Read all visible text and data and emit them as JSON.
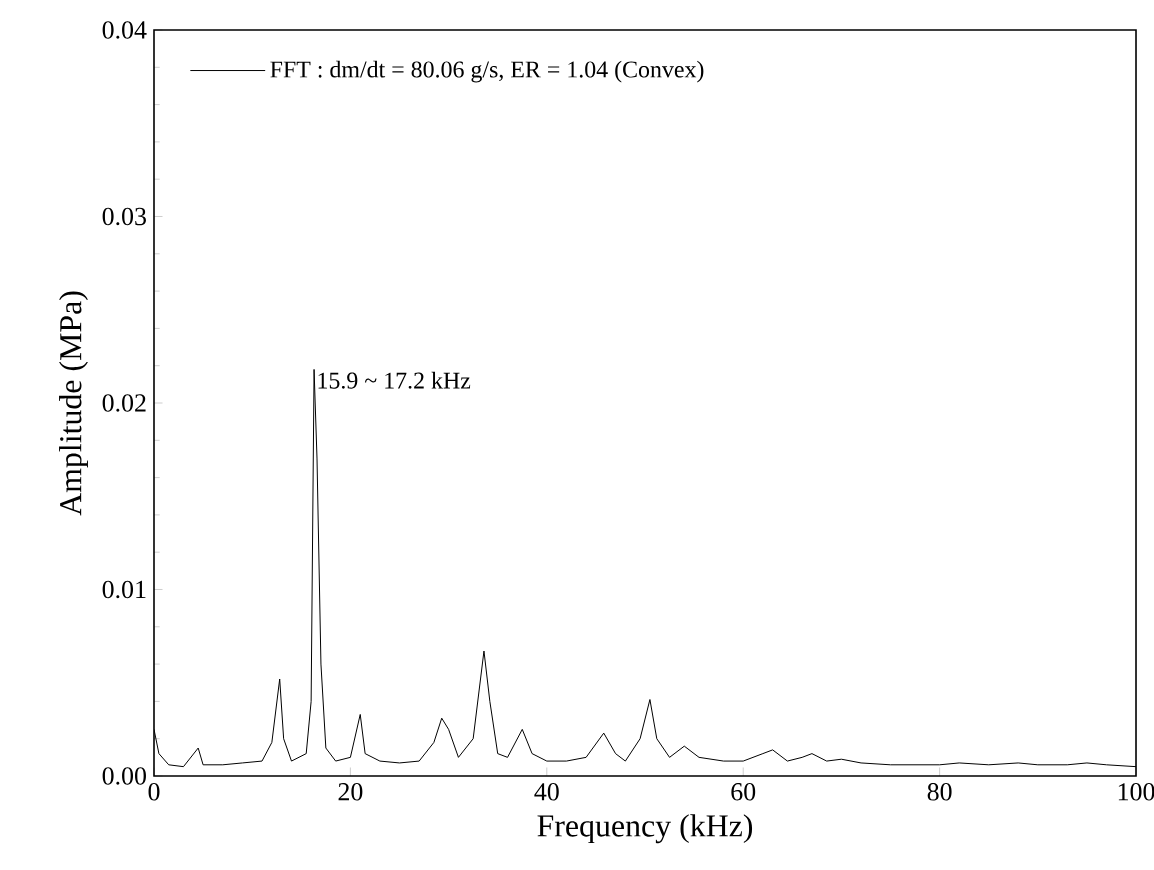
{
  "chart_data": {
    "type": "line",
    "xlabel": "Frequency (kHz)",
    "ylabel": "Amplitude (MPa)",
    "x": [
      0,
      0.5,
      1.5,
      3,
      4.5,
      5,
      7,
      9,
      11,
      12,
      12.8,
      13.2,
      14,
      15.5,
      16,
      16.3,
      16.6,
      17,
      17.5,
      18.5,
      20,
      21,
      21.5,
      23,
      25,
      27,
      28.5,
      29.3,
      30,
      31,
      32.5,
      33.6,
      34.2,
      35,
      36,
      37.5,
      38.5,
      40,
      42,
      44,
      45.8,
      47,
      48,
      49.5,
      50.5,
      51.2,
      52.5,
      54,
      55.5,
      58,
      60,
      62,
      63,
      64.5,
      66,
      67,
      68.5,
      70,
      72,
      75,
      78,
      80,
      82,
      85,
      88,
      90,
      93,
      95,
      97,
      100
    ],
    "series": [
      {
        "name": "FFT : dm/dt = 80.06 g/s, ER = 1.04 (Convex)",
        "color": "#000000",
        "values": [
          0.0025,
          0.0012,
          0.0006,
          0.0005,
          0.0015,
          0.0006,
          0.0006,
          0.0007,
          0.0008,
          0.0018,
          0.0052,
          0.002,
          0.0008,
          0.0012,
          0.004,
          0.0218,
          0.017,
          0.006,
          0.0015,
          0.0008,
          0.001,
          0.0033,
          0.0012,
          0.0008,
          0.0007,
          0.0008,
          0.0018,
          0.0031,
          0.0025,
          0.001,
          0.002,
          0.0067,
          0.004,
          0.0012,
          0.001,
          0.0025,
          0.0012,
          0.0008,
          0.0008,
          0.001,
          0.0023,
          0.0012,
          0.0008,
          0.002,
          0.0041,
          0.002,
          0.001,
          0.0016,
          0.001,
          0.0008,
          0.0008,
          0.0012,
          0.0014,
          0.0008,
          0.001,
          0.0012,
          0.0008,
          0.0009,
          0.0007,
          0.0006,
          0.0006,
          0.0006,
          0.0007,
          0.0006,
          0.0007,
          0.0006,
          0.0006,
          0.0007,
          0.0006,
          0.0005
        ]
      }
    ],
    "annotations": [
      {
        "text": "15.9 ~ 17.2 kHz",
        "x": 16.3,
        "y": 0.0218
      }
    ],
    "xlim": [
      0,
      100
    ],
    "ylim": [
      0,
      0.04
    ],
    "xticks": [
      0,
      20,
      40,
      60,
      80,
      100
    ],
    "yticks": [
      {
        "value": 0,
        "label": "0.00"
      },
      {
        "value": 0.01,
        "label": "0.01"
      },
      {
        "value": 0.02,
        "label": "0.02"
      },
      {
        "value": 0.03,
        "label": "0.03"
      },
      {
        "value": 0.04,
        "label": "0.04"
      }
    ],
    "legend": "top left",
    "grid": false,
    "marker": "none",
    "line_style": "solid"
  }
}
